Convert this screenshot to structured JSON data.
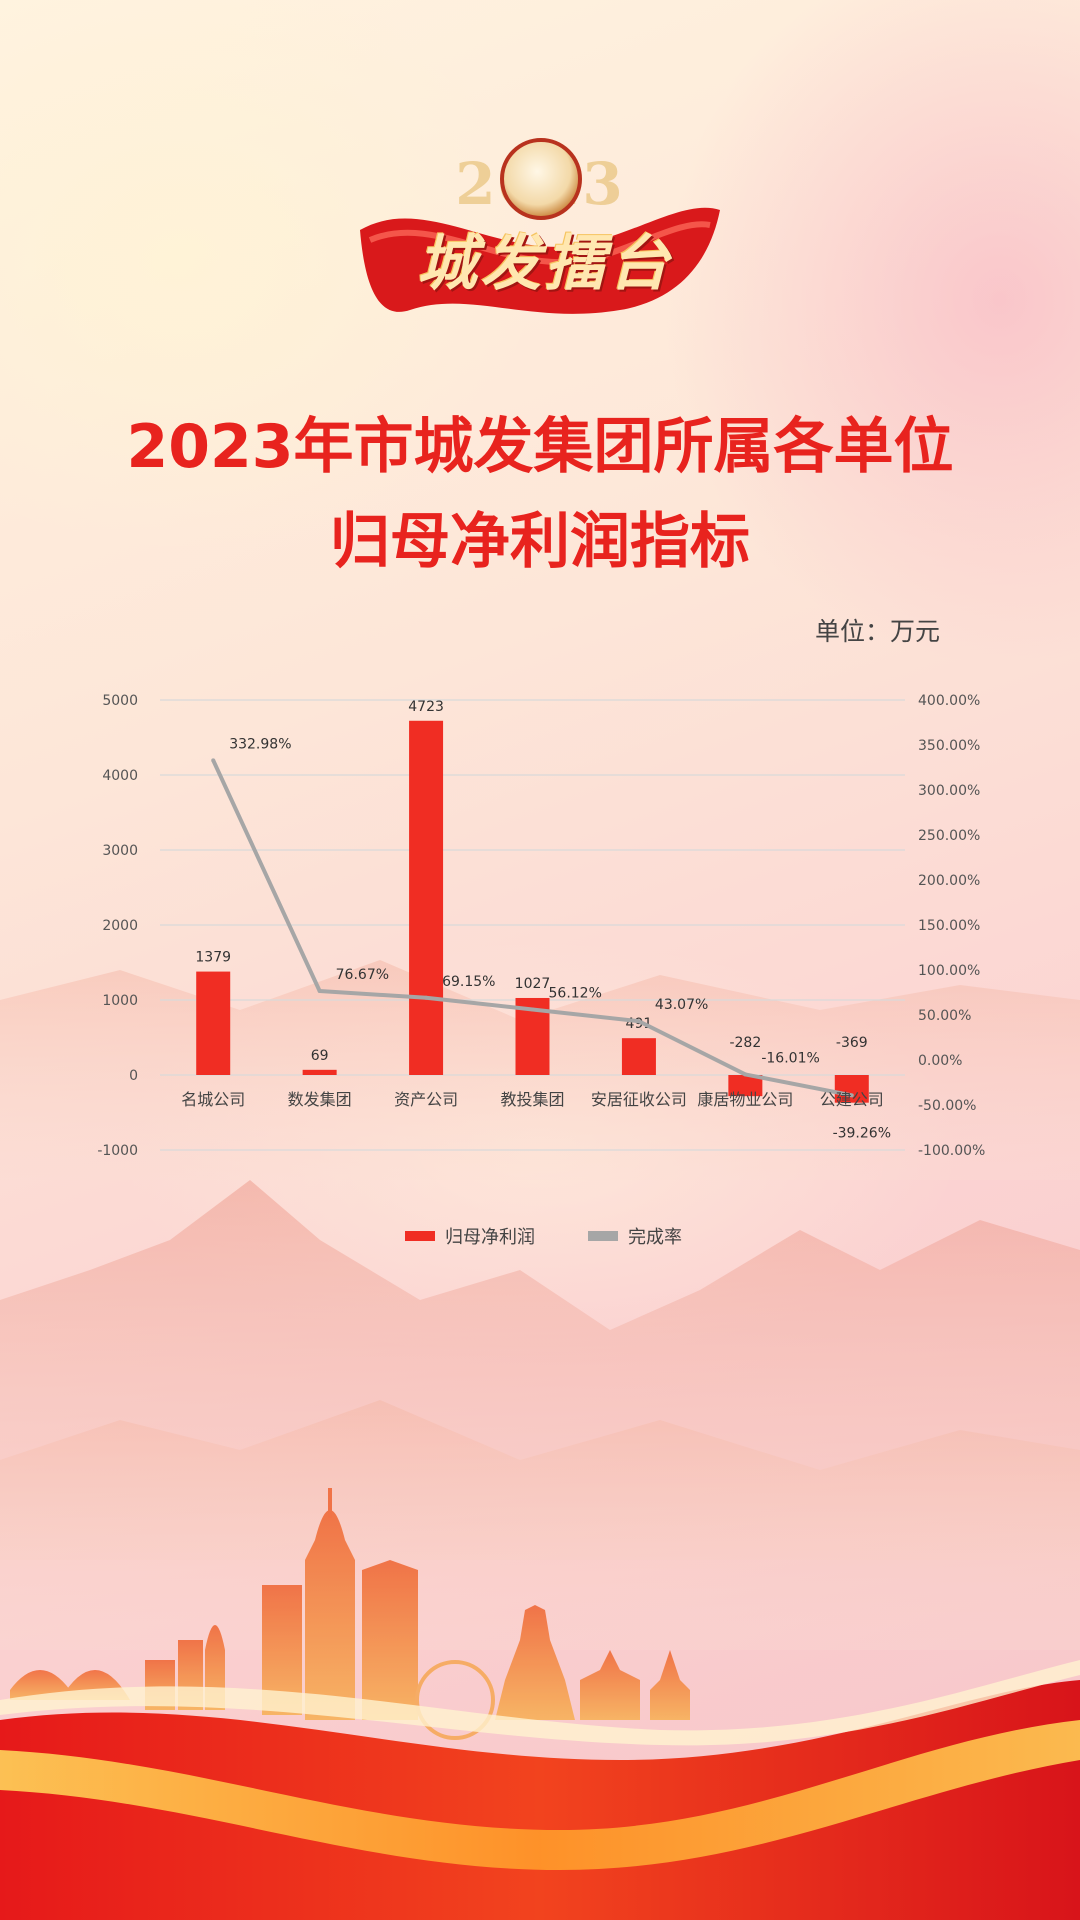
{
  "banner": {
    "year": "2023",
    "text": "城发擂台"
  },
  "title_line1": "2023年市城发集团所属各单位",
  "title_line2": "归母净利润指标",
  "unit_label": "单位：万元",
  "colors": {
    "title": "#e8231e",
    "bar": "#f02d23",
    "line": "#a6a6a6",
    "grid": "#d9d9d9"
  },
  "chart_data": {
    "type": "bar",
    "categories": [
      "名城公司",
      "数发集团",
      "资产公司",
      "教投集团",
      "安居征收公司",
      "康居物业公司",
      "公建公司"
    ],
    "series": [
      {
        "name": "归母净利润",
        "type": "bar",
        "axis": "left",
        "values": [
          1379,
          69,
          4723,
          1027,
          491,
          -282,
          -369
        ],
        "labels": [
          "1379",
          "69",
          "4723",
          "1027",
          "491",
          "-282",
          "-369"
        ]
      },
      {
        "name": "完成率",
        "type": "line",
        "axis": "right",
        "values": [
          332.98,
          76.67,
          69.15,
          56.12,
          43.07,
          -16.01,
          -39.26
        ],
        "labels": [
          "332.98%",
          "76.67%",
          "69.15%",
          "56.12%",
          "43.07%",
          "-16.01%",
          "-39.26%"
        ]
      }
    ],
    "y_left": {
      "lim": [
        -1000,
        5000
      ],
      "ticks": [
        -1000,
        0,
        1000,
        2000,
        3000,
        4000,
        5000
      ],
      "tick_labels": [
        "-1000",
        "0",
        "1000",
        "2000",
        "3000",
        "4000",
        "5000"
      ]
    },
    "y_right": {
      "lim": [
        -100,
        400
      ],
      "ticks": [
        -100,
        -50,
        0,
        50,
        100,
        150,
        200,
        250,
        300,
        350,
        400
      ],
      "tick_labels": [
        "-100.00%",
        "-50.00%",
        "0.00%",
        "50.00%",
        "100.00%",
        "150.00%",
        "200.00%",
        "250.00%",
        "300.00%",
        "350.00%",
        "400.00%"
      ]
    },
    "grid": true,
    "legend": "bottom-center"
  }
}
